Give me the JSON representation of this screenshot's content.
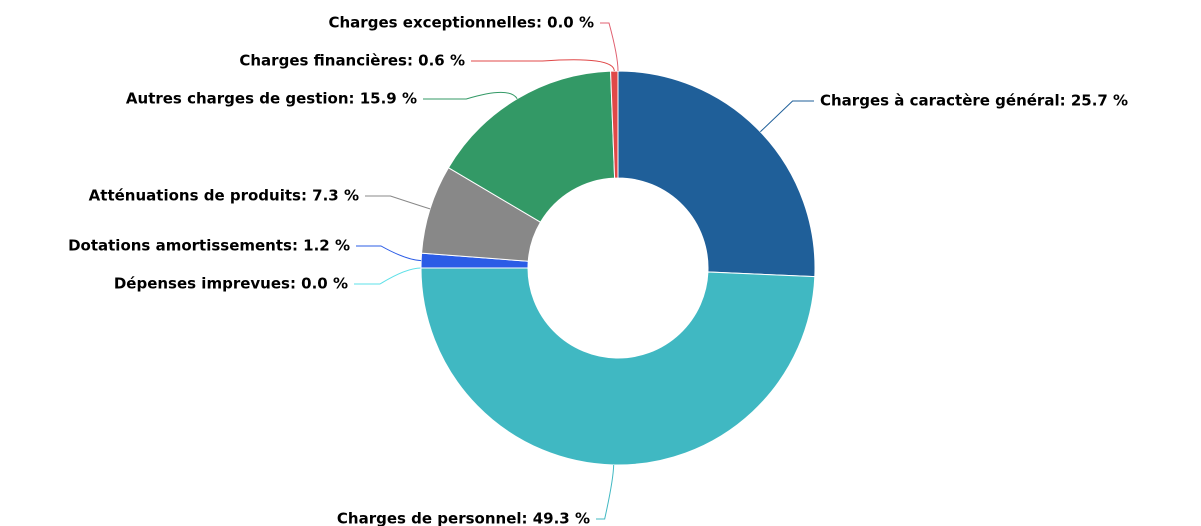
{
  "chart_data": {
    "type": "pie",
    "donut": true,
    "values": [
      25.7,
      49.3,
      0.0,
      1.2,
      7.3,
      15.9,
      0.6,
      0.0
    ],
    "value_labels": [
      "Charges à caractère général: 25.7 %",
      "Charges de personnel: 49.3 %",
      "Dépenses imprevues: 0.0 %",
      "Dotations amortissements: 1.2 %",
      "Atténuations de produits: 7.3 %",
      "Autres charges de gestion: 15.9 %",
      "Charges financières: 0.6 %",
      "Charges exceptionnelles: 0.0 %"
    ],
    "colors": [
      "#1f5f99",
      "#40b8c2",
      "#5ee0e8",
      "#2b5ce6",
      "#888888",
      "#339966",
      "#e04848",
      "#e06070"
    ]
  }
}
